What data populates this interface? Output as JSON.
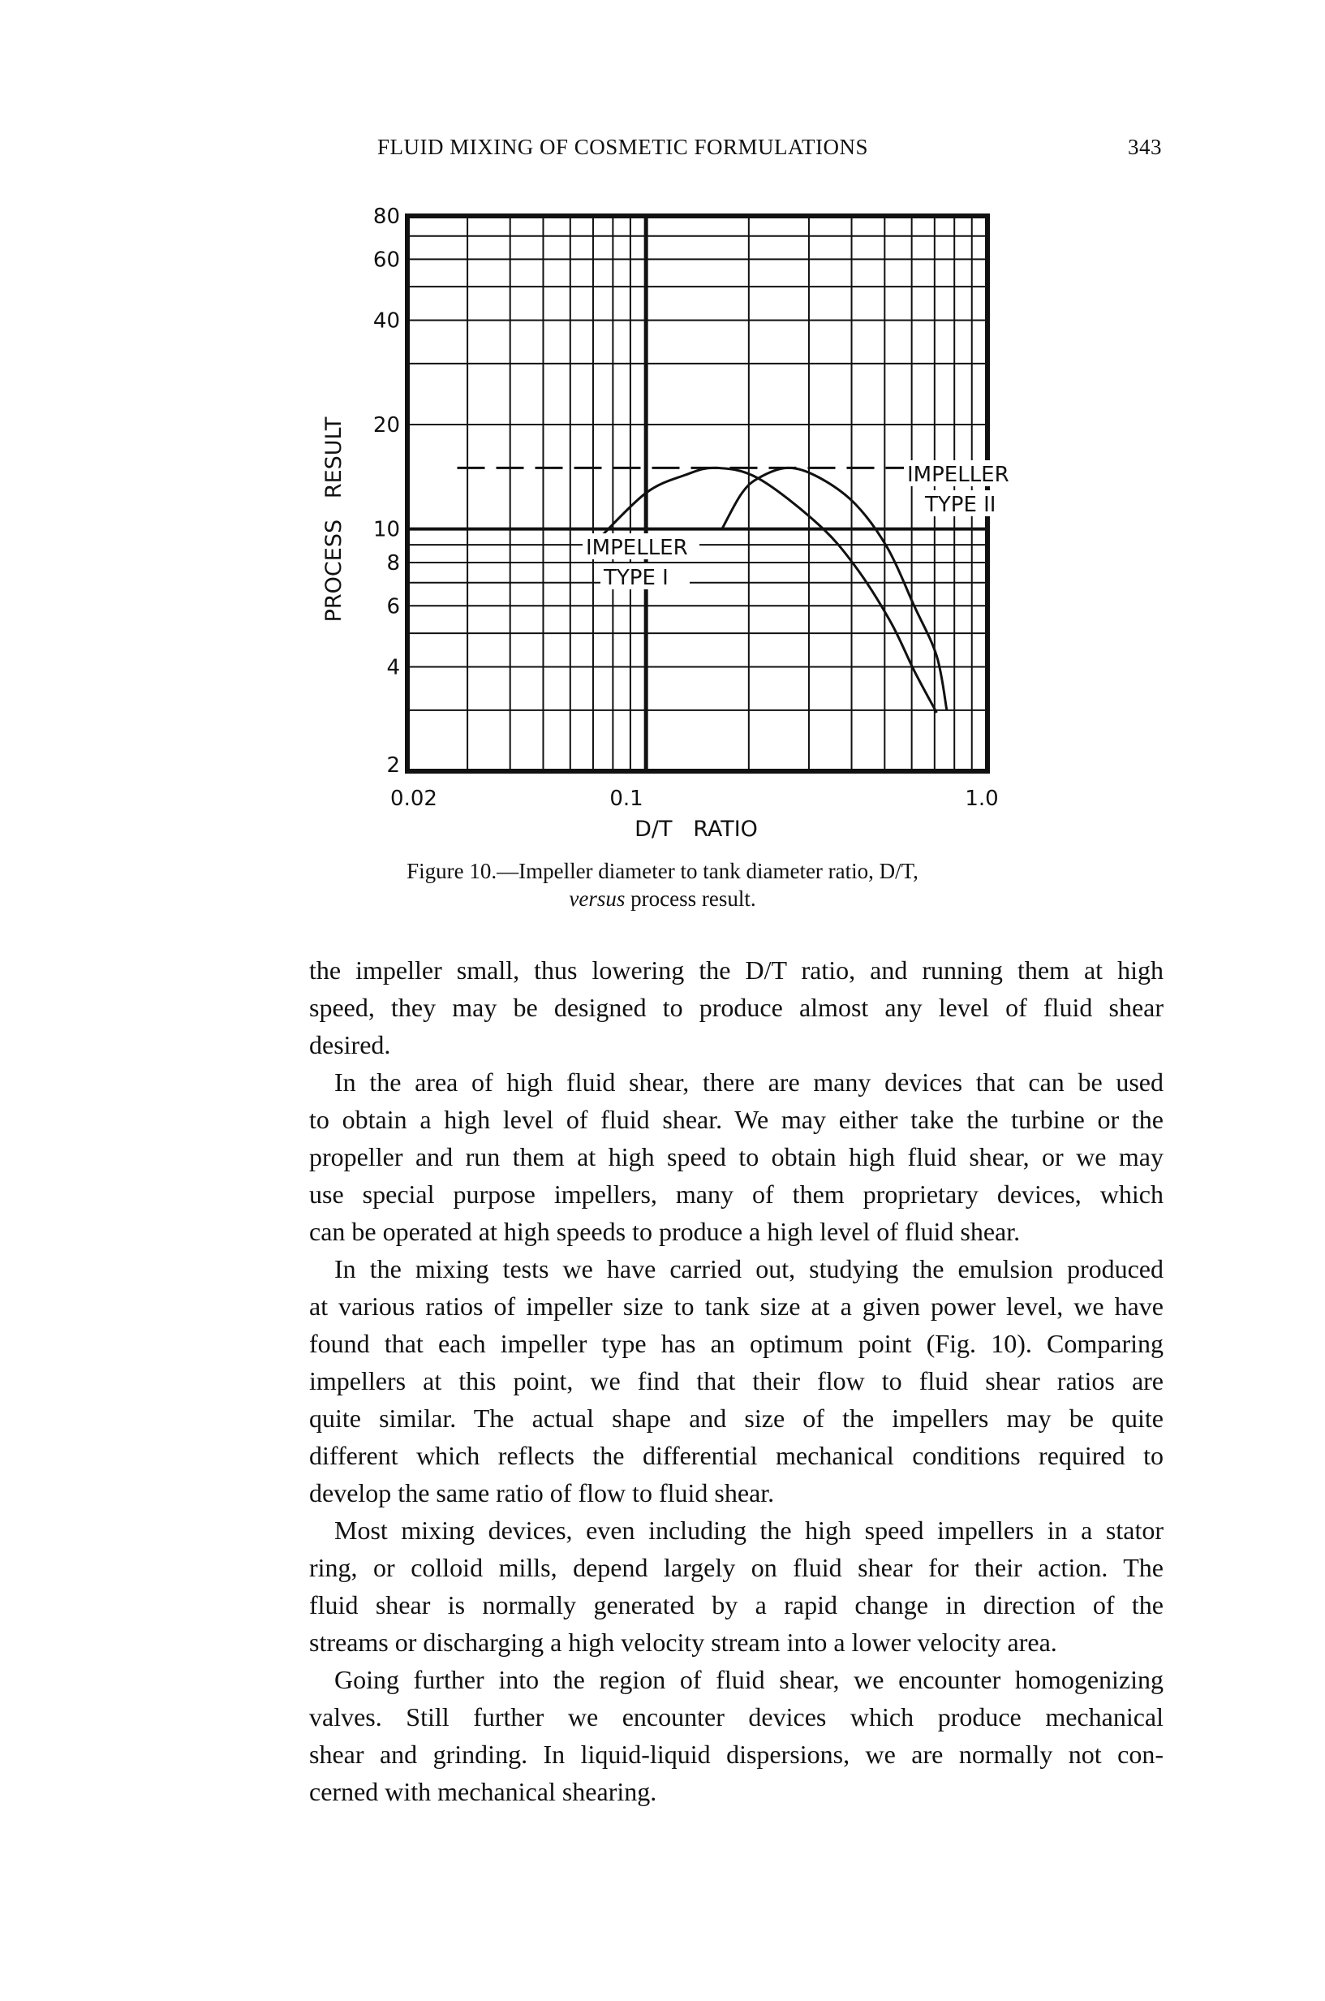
{
  "header": {
    "running_title": "FLUID MIXING OF COSMETIC FORMULATIONS",
    "page_number": "343"
  },
  "chart_data": {
    "type": "line",
    "xlabel": "D/T   RATIO",
    "ylabel": "PROCESS   RESULT",
    "xscale": "log",
    "yscale": "log",
    "xlim": [
      0.02,
      1.0
    ],
    "ylim": [
      2,
      80
    ],
    "x_ticks": [
      "0.02",
      "0.1",
      "1.0"
    ],
    "y_ticks": [
      "2",
      "4",
      "6",
      "8",
      "10",
      "20",
      "40",
      "60",
      "80"
    ],
    "grid": true,
    "reference_line": {
      "style": "dashed",
      "y": 15
    },
    "series": [
      {
        "name": "IMPELLER TYPE I",
        "label_lines": [
          "IMPELLER",
          "TYPE I"
        ],
        "x": [
          0.073,
          0.1,
          0.13,
          0.16,
          0.213,
          0.32,
          0.41,
          0.52,
          0.61,
          0.71
        ],
        "y": [
          9.4,
          12.7,
          14.3,
          15,
          14.0,
          10.3,
          7.8,
          5.4,
          3.9,
          2.95
        ]
      },
      {
        "name": "IMPELLER TYPE II",
        "label_lines": [
          "IMPELLER",
          "TYPE II"
        ],
        "x": [
          0.167,
          0.19,
          0.213,
          0.26,
          0.32,
          0.41,
          0.51,
          0.61,
          0.71,
          0.76
        ],
        "y": [
          10,
          12.6,
          14,
          15,
          14.1,
          11.8,
          8.8,
          6.0,
          4.3,
          3.0
        ]
      }
    ]
  },
  "caption": {
    "lead": "Figure 10.—Impeller diameter to tank diameter ratio, D/T,",
    "italic": "versus",
    "rest": " process result."
  },
  "body": {
    "paragraphs": [
      {
        "indent": false,
        "lines": [
          "the impeller small, thus lowering the D/T ratio, and running them at high",
          "speed, they may be designed to produce almost any level of fluid shear",
          "desired."
        ]
      },
      {
        "indent": true,
        "lines": [
          "In the area of high fluid shear, there are many devices that can be used",
          "to obtain a high level of fluid shear.  We may either take the turbine or the",
          "propeller and run them at high speed to obtain high fluid shear, or we may",
          "use special purpose impellers, many of them proprietary devices, which",
          "can be operated at high speeds to produce a high level of fluid shear."
        ]
      },
      {
        "indent": true,
        "lines": [
          "In the mixing tests we have carried out, studying the emulsion produced",
          "at various ratios of impeller size to tank size at a given power level, we have",
          "found that each impeller type has an optimum point (Fig. 10).  Comparing",
          "impellers at this point, we find that their flow to fluid shear ratios are",
          "quite similar.  The actual shape and size of the impellers may be quite",
          "different which reflects the differential mechanical conditions required to",
          "develop the same ratio of flow to fluid shear."
        ]
      },
      {
        "indent": true,
        "lines": [
          "Most mixing devices, even including the high speed impellers in a stator",
          "ring, or colloid mills, depend largely on fluid shear for their action.  The",
          "fluid shear is normally generated by a rapid change in direction of the",
          "streams or discharging a high velocity stream into a lower velocity area."
        ]
      },
      {
        "indent": true,
        "lines": [
          "Going further into the region of fluid shear, we encounter homogenizing",
          "valves.  Still further we encounter devices which produce mechanical",
          "shear and grinding.  In liquid-liquid dispersions, we are normally not con-",
          "cerned with mechanical shearing."
        ]
      }
    ]
  }
}
